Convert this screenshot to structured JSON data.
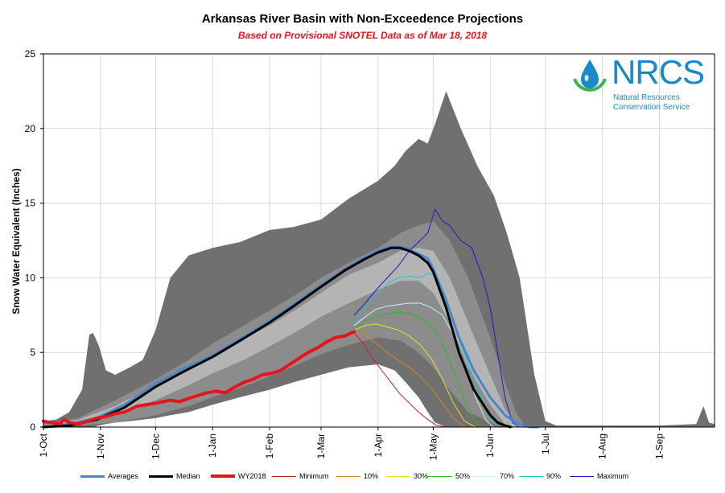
{
  "chart_data": {
    "type": "line",
    "title": "Arkansas River Basin with Non-Exceedence Projections",
    "subtitle": "Based on Provisional SNOTEL Data as of Mar 18, 2018",
    "xlabel": "",
    "ylabel": "Snow Water Equivalent (Inches)",
    "ylim": [
      0,
      25
    ],
    "yticks": [
      "0",
      "5",
      "10",
      "15",
      "20",
      "25"
    ],
    "x_unit": "day of water year (1 = 1-Oct)",
    "xlim": [
      1,
      366
    ],
    "xticks": [
      {
        "label": "1-Oct",
        "day": 1
      },
      {
        "label": "1-Nov",
        "day": 32
      },
      {
        "label": "1-Dec",
        "day": 62
      },
      {
        "label": "1-Jan",
        "day": 93
      },
      {
        "label": "1-Feb",
        "day": 124
      },
      {
        "label": "1-Mar",
        "day": 152
      },
      {
        "label": "1-Apr",
        "day": 183
      },
      {
        "label": "1-May",
        "day": 213
      },
      {
        "label": "1-Jun",
        "day": 244
      },
      {
        "label": "1-Jul",
        "day": 274
      },
      {
        "label": "1-Aug",
        "day": 305
      },
      {
        "label": "1-Sep",
        "day": 336
      }
    ],
    "bands": [
      {
        "name": "Min-Max range",
        "color": "#707070",
        "x": [
          1,
          8,
          15,
          22,
          26,
          28,
          31,
          35,
          40,
          48,
          55,
          62,
          70,
          80,
          93,
          108,
          124,
          137,
          152,
          167,
          183,
          192,
          198,
          205,
          210,
          214,
          220,
          228,
          237,
          246,
          253,
          260,
          268,
          274,
          280,
          300,
          336,
          356,
          360,
          363,
          366
        ],
        "upper": [
          0.4,
          0.5,
          1.0,
          2.5,
          6.2,
          6.3,
          5.5,
          3.8,
          3.5,
          4.0,
          4.5,
          6.5,
          10.0,
          11.5,
          12.0,
          12.4,
          13.2,
          13.4,
          13.9,
          15.3,
          16.5,
          17.5,
          18.5,
          19.3,
          19.0,
          20.3,
          22.5,
          20.0,
          17.5,
          15.5,
          13.0,
          10.0,
          3.5,
          0.4,
          0.1,
          0.1,
          0.1,
          0.2,
          1.4,
          0.3,
          0.2
        ],
        "lower": [
          0.0,
          0.0,
          0.0,
          0.0,
          0.0,
          0.0,
          0.1,
          0.2,
          0.3,
          0.4,
          0.5,
          0.6,
          0.8,
          1.0,
          1.5,
          2.0,
          2.5,
          3.0,
          3.5,
          4.0,
          4.2,
          3.8,
          3.0,
          2.0,
          1.0,
          0.3,
          0.0,
          0.0,
          0.0,
          0.0,
          0.0,
          0.0,
          0.0,
          0.0,
          0.0,
          0.0,
          0.0,
          0.0,
          0.0,
          0.0,
          0.0
        ]
      },
      {
        "name": "10-90% range",
        "color": "#8c8c8c",
        "x": [
          1,
          20,
          40,
          62,
          80,
          93,
          110,
          124,
          140,
          152,
          167,
          183,
          195,
          205,
          213,
          222,
          232,
          244,
          252,
          258,
          262,
          266
        ],
        "upper": [
          0.2,
          0.6,
          1.8,
          3.2,
          4.5,
          5.6,
          6.8,
          7.8,
          9.0,
          10.0,
          11.0,
          12.0,
          13.0,
          13.5,
          13.8,
          12.5,
          10.0,
          6.0,
          3.0,
          1.0,
          0.2,
          0.0
        ],
        "lower": [
          0.0,
          0.1,
          0.3,
          0.8,
          1.4,
          2.0,
          2.7,
          3.4,
          4.2,
          4.9,
          5.5,
          6.0,
          5.8,
          5.0,
          4.0,
          2.5,
          1.0,
          0.3,
          0.0,
          0.0,
          0.0,
          0.0
        ]
      },
      {
        "name": "30-70% range",
        "color": "#b4b4b4",
        "x": [
          1,
          20,
          40,
          62,
          80,
          93,
          110,
          124,
          140,
          152,
          167,
          183,
          195,
          205,
          213,
          222,
          232,
          244,
          252,
          258,
          262
        ],
        "upper": [
          0.1,
          0.5,
          1.4,
          2.8,
          3.9,
          4.9,
          5.9,
          6.8,
          8.0,
          9.0,
          10.2,
          11.0,
          11.8,
          12.0,
          11.8,
          10.0,
          7.0,
          3.5,
          1.2,
          0.2,
          0.0
        ],
        "lower": [
          0.0,
          0.2,
          0.8,
          1.8,
          2.8,
          3.6,
          4.5,
          5.4,
          6.5,
          7.4,
          8.3,
          9.2,
          9.8,
          9.8,
          9.0,
          7.0,
          4.0,
          1.5,
          0.2,
          0.0,
          0.0
        ]
      }
    ],
    "series": [
      {
        "name": "Averages",
        "color": "#4a86c8",
        "width": 3,
        "x": [
          1,
          15,
          30,
          45,
          62,
          77,
          93,
          108,
          124,
          137,
          152,
          165,
          175,
          183,
          190,
          195,
          200,
          205,
          210,
          213,
          220,
          227,
          235,
          244,
          252,
          258,
          262,
          266,
          270
        ],
        "values": [
          0.0,
          0.2,
          0.6,
          1.5,
          2.9,
          3.9,
          4.8,
          5.9,
          7.1,
          8.2,
          9.5,
          10.6,
          11.3,
          11.8,
          12.1,
          12.1,
          11.9,
          11.6,
          11.3,
          10.6,
          8.5,
          6.0,
          3.8,
          2.0,
          0.8,
          0.3,
          0.1,
          0.0,
          0.0
        ]
      },
      {
        "name": "Median",
        "color": "#000000",
        "width": 3,
        "x": [
          1,
          15,
          30,
          45,
          62,
          77,
          93,
          108,
          124,
          137,
          152,
          165,
          175,
          183,
          190,
          195,
          200,
          205,
          210,
          213,
          220,
          227,
          235,
          244,
          248,
          252,
          255
        ],
        "values": [
          0.0,
          0.1,
          0.5,
          1.3,
          2.7,
          3.7,
          4.7,
          5.8,
          7.0,
          8.1,
          9.4,
          10.5,
          11.2,
          11.7,
          12.0,
          12.0,
          11.8,
          11.5,
          11.0,
          10.4,
          8.0,
          5.0,
          2.5,
          0.8,
          0.3,
          0.1,
          0.0
        ]
      },
      {
        "name": "WY2018",
        "color": "#e8141c",
        "width": 4,
        "x": [
          1,
          5,
          10,
          12,
          15,
          20,
          25,
          30,
          35,
          40,
          45,
          52,
          62,
          70,
          75,
          82,
          90,
          95,
          100,
          104,
          110,
          115,
          120,
          125,
          130,
          135,
          140,
          145,
          150,
          155,
          160,
          165,
          170
        ],
        "values": [
          0.4,
          0.3,
          0.2,
          0.5,
          0.3,
          0.2,
          0.4,
          0.6,
          0.7,
          0.9,
          1.0,
          1.4,
          1.6,
          1.8,
          1.7,
          2.0,
          2.3,
          2.4,
          2.3,
          2.6,
          3.0,
          3.2,
          3.5,
          3.6,
          3.8,
          4.2,
          4.6,
          5.0,
          5.3,
          5.7,
          6.0,
          6.1,
          6.4
        ]
      },
      {
        "name": "Minimum",
        "color": "#cc1e1e",
        "width": 1,
        "x": [
          170,
          175,
          180,
          185,
          190,
          195,
          200,
          205,
          210,
          215,
          220
        ],
        "values": [
          6.3,
          5.6,
          4.6,
          3.8,
          3.0,
          2.2,
          1.6,
          1.0,
          0.5,
          0.1,
          0.0
        ]
      },
      {
        "name": "10%",
        "color": "#d9851c",
        "width": 1,
        "x": [
          170,
          176,
          182,
          188,
          194,
          200,
          206,
          212,
          218,
          224,
          230
        ],
        "values": [
          6.4,
          6.2,
          5.6,
          5.0,
          4.5,
          4.0,
          3.4,
          2.6,
          1.6,
          0.6,
          0.0
        ]
      },
      {
        "name": "30%",
        "color": "#e8e21c",
        "width": 1,
        "x": [
          170,
          176,
          182,
          188,
          194,
          200,
          206,
          212,
          218,
          224,
          230,
          236
        ],
        "values": [
          6.5,
          6.8,
          6.9,
          6.7,
          6.5,
          6.1,
          5.5,
          4.6,
          3.2,
          1.6,
          0.4,
          0.0
        ]
      },
      {
        "name": "50%",
        "color": "#2db82d",
        "width": 1,
        "x": [
          170,
          176,
          182,
          188,
          194,
          200,
          206,
          212,
          218,
          224,
          230,
          236,
          240
        ],
        "values": [
          6.6,
          7.1,
          7.4,
          7.6,
          7.7,
          7.6,
          7.3,
          6.8,
          5.6,
          3.8,
          1.8,
          0.3,
          0.0
        ]
      },
      {
        "name": "70%",
        "color": "#c8f0f0",
        "width": 1,
        "x": [
          170,
          176,
          182,
          188,
          194,
          200,
          206,
          212,
          218,
          224,
          230,
          236,
          242,
          246
        ],
        "values": [
          6.8,
          7.4,
          7.9,
          8.1,
          8.2,
          8.3,
          8.3,
          8.0,
          7.5,
          6.2,
          4.2,
          2.0,
          0.4,
          0.0
        ]
      },
      {
        "name": "90%",
        "color": "#1cc8c8",
        "width": 1,
        "x": [
          170,
          176,
          182,
          188,
          194,
          200,
          206,
          210,
          213,
          216,
          222,
          228,
          236,
          244,
          248
        ],
        "values": [
          7.0,
          8.0,
          8.8,
          9.6,
          10.0,
          10.1,
          10.0,
          10.3,
          10.2,
          9.5,
          7.8,
          5.5,
          3.0,
          0.6,
          0.0
        ]
      },
      {
        "name": "Maximum",
        "color": "#1c1cc8",
        "width": 1,
        "x": [
          170,
          176,
          182,
          188,
          194,
          200,
          205,
          210,
          214,
          218,
          222,
          228,
          234,
          240,
          244,
          248,
          252,
          256,
          260
        ],
        "values": [
          7.5,
          8.3,
          9.2,
          10.0,
          10.8,
          11.8,
          12.4,
          13.0,
          14.6,
          13.8,
          13.5,
          12.5,
          12.0,
          10.0,
          8.0,
          5.0,
          2.0,
          0.3,
          0.0
        ]
      }
    ],
    "legend": {
      "position": "bottom",
      "items": [
        "Averages",
        "Median",
        "WY2018",
        "Minimum",
        "10%",
        "30%",
        "50%",
        "70%",
        "90%",
        "Maximum"
      ]
    }
  },
  "logo": {
    "name": "NRCS",
    "line1": "Natural Resources",
    "line2": "Conservation Service"
  },
  "colors": {
    "logo_blue": "#1a88c9",
    "logo_green": "#3ab54a",
    "gridline": "#d9d9d9"
  }
}
